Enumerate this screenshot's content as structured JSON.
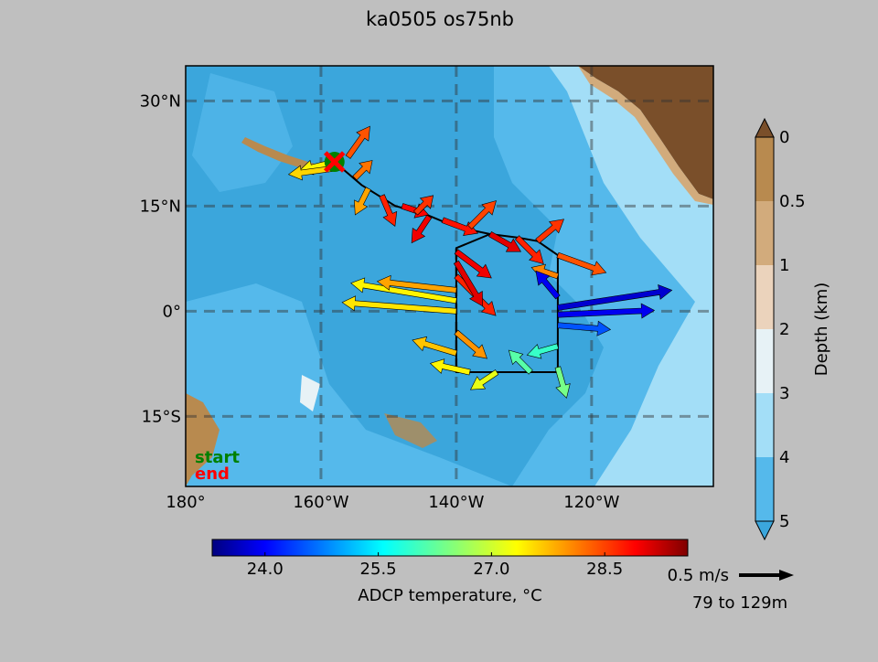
{
  "chart_data": {
    "type": "map-vector",
    "title": "ka0505 os75nb",
    "map_extent": {
      "lon": [
        -180,
        -102
      ],
      "lat": [
        -25,
        35
      ]
    },
    "lon_ticks": [
      {
        "value": -180,
        "label": "180°"
      },
      {
        "value": -160,
        "label": "160°W"
      },
      {
        "value": -140,
        "label": "140°W"
      },
      {
        "value": -120,
        "label": "120°W"
      }
    ],
    "lat_ticks": [
      {
        "value": 30,
        "label": "30°N"
      },
      {
        "value": 15,
        "label": "15°N"
      },
      {
        "value": 0,
        "label": "0°"
      },
      {
        "value": -15,
        "label": "15°S"
      }
    ],
    "gridlines": "dashed",
    "legend": {
      "start_label": "start",
      "end_label": "end",
      "start_color": "#008000",
      "end_color": "#ff0000",
      "placement": "bottom-left"
    },
    "start": {
      "lon": -158,
      "lat": 21.3
    },
    "end": {
      "lon": -158,
      "lat": 21.3
    },
    "cruise_track": [
      [
        -158,
        21.3
      ],
      [
        -154,
        18
      ],
      [
        -149,
        15
      ],
      [
        -145,
        14
      ],
      [
        -140,
        12
      ],
      [
        -135,
        11
      ],
      [
        -131,
        10.5
      ],
      [
        -128,
        10
      ],
      [
        -125,
        8
      ],
      [
        -125,
        -8.7
      ],
      [
        -132,
        -8.7
      ],
      [
        -140,
        -8.7
      ],
      [
        -140,
        9
      ],
      [
        -135,
        11
      ]
    ],
    "vectors": [
      {
        "lon": -158,
        "lat": 21.3,
        "u": -0.4,
        "v": -0.1,
        "t": 27.3
      },
      {
        "lon": -157,
        "lat": 20.5,
        "u": -0.6,
        "v": -0.08,
        "t": 27.5
      },
      {
        "lon": -156,
        "lat": 22,
        "u": 0.25,
        "v": 0.35,
        "t": 28.3
      },
      {
        "lon": -155,
        "lat": 19,
        "u": 0.2,
        "v": 0.2,
        "t": 28.1
      },
      {
        "lon": -153,
        "lat": 17.5,
        "u": -0.15,
        "v": -0.3,
        "t": 27.8
      },
      {
        "lon": -151,
        "lat": 16.5,
        "u": 0.15,
        "v": -0.35,
        "t": 28.6
      },
      {
        "lon": -148,
        "lat": 15,
        "u": 0.3,
        "v": -0.1,
        "t": 28.8
      },
      {
        "lon": -146,
        "lat": 14,
        "u": 0.2,
        "v": 0.2,
        "t": 28.5
      },
      {
        "lon": -144,
        "lat": 13.5,
        "u": -0.2,
        "v": -0.3,
        "t": 28.9
      },
      {
        "lon": -142,
        "lat": 13,
        "u": 0.4,
        "v": -0.15,
        "t": 28.7
      },
      {
        "lon": -138,
        "lat": 12,
        "u": 0.3,
        "v": 0.3,
        "t": 28.4
      },
      {
        "lon": -135,
        "lat": 11,
        "u": 0.35,
        "v": -0.2,
        "t": 29.0
      },
      {
        "lon": -131,
        "lat": 10.5,
        "u": 0.3,
        "v": -0.3,
        "t": 28.6
      },
      {
        "lon": -128,
        "lat": 10,
        "u": 0.3,
        "v": 0.25,
        "t": 28.5
      },
      {
        "lon": -125,
        "lat": 8,
        "u": 0.55,
        "v": -0.2,
        "t": 28.3
      },
      {
        "lon": -125,
        "lat": 5,
        "u": -0.3,
        "v": 0.1,
        "t": 28.0
      },
      {
        "lon": -125,
        "lat": 2,
        "u": -0.25,
        "v": 0.3,
        "t": 24.0
      },
      {
        "lon": -125,
        "lat": 0.5,
        "u": 1.3,
        "v": 0.2,
        "t": 23.8
      },
      {
        "lon": -125,
        "lat": -0.5,
        "u": 1.1,
        "v": 0.05,
        "t": 24.0
      },
      {
        "lon": -125,
        "lat": -2,
        "u": 0.6,
        "v": -0.05,
        "t": 24.6
      },
      {
        "lon": -125,
        "lat": -5,
        "u": -0.35,
        "v": -0.1,
        "t": 26.0
      },
      {
        "lon": -125,
        "lat": -8,
        "u": 0.1,
        "v": -0.35,
        "t": 26.4
      },
      {
        "lon": -129,
        "lat": -8.7,
        "u": -0.25,
        "v": 0.25,
        "t": 26.2
      },
      {
        "lon": -134,
        "lat": -8.7,
        "u": -0.3,
        "v": -0.2,
        "t": 27.1
      },
      {
        "lon": -138,
        "lat": -8.7,
        "u": -0.45,
        "v": 0.1,
        "t": 27.3
      },
      {
        "lon": -140,
        "lat": -6,
        "u": -0.5,
        "v": 0.15,
        "t": 27.6
      },
      {
        "lon": -140,
        "lat": -3,
        "u": 0.35,
        "v": -0.3,
        "t": 27.9
      },
      {
        "lon": -140,
        "lat": 0,
        "u": -1.3,
        "v": 0.1,
        "t": 27.4
      },
      {
        "lon": -140,
        "lat": 1.5,
        "u": -1.2,
        "v": 0.2,
        "t": 27.3
      },
      {
        "lon": -140,
        "lat": 3,
        "u": -0.9,
        "v": 0.1,
        "t": 27.8
      },
      {
        "lon": -140,
        "lat": 5,
        "u": 0.45,
        "v": -0.45,
        "t": 28.6
      },
      {
        "lon": -140,
        "lat": 7,
        "u": 0.3,
        "v": -0.5,
        "t": 29.0
      },
      {
        "lon": -140,
        "lat": 8.5,
        "u": 0.4,
        "v": -0.3,
        "t": 28.9
      }
    ],
    "temperature_colorbar": {
      "label": "ADCP temperature, °C",
      "ticks": [
        24.0,
        25.5,
        27.0,
        28.5
      ],
      "range": [
        23.3,
        29.6
      ]
    },
    "depth_colorbar": {
      "label": "Depth (km)",
      "ticks": [
        "0",
        "0.5",
        "1",
        "2",
        "3",
        "4",
        "5"
      ],
      "colors": [
        "#7a4f2a",
        "#b88a4f",
        "#d2ab7c",
        "#ebd3bc",
        "#e7f2f6",
        "#a3def7",
        "#55b9eb",
        "#3ba6dc"
      ]
    },
    "reference_arrow": {
      "speed_label": "0.5 m/s",
      "depth_range_label": "79 to 129m"
    }
  }
}
